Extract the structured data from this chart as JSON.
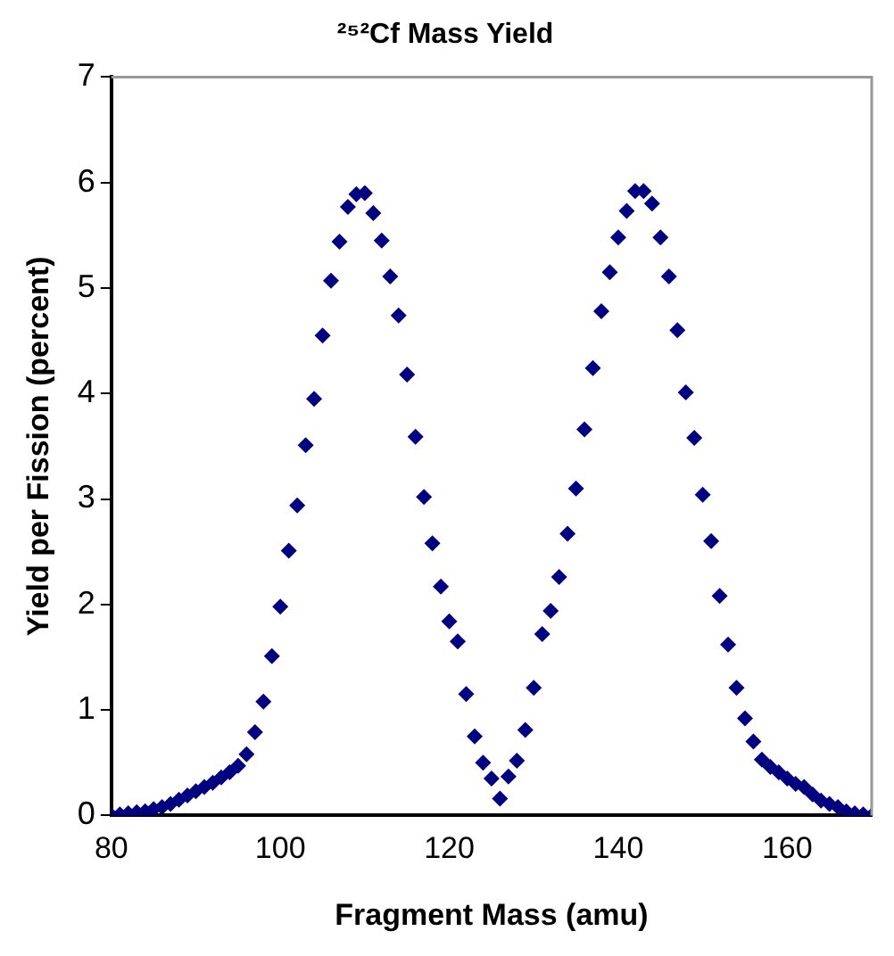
{
  "chart_data": {
    "type": "scatter",
    "title": "²⁵²Cf Mass Yield",
    "xlabel": "Fragment Mass (amu)",
    "ylabel": "Yield per Fission (percent)",
    "series": [
      {
        "color": "#000080",
        "x": [
          80,
          81,
          82,
          83,
          84,
          85,
          86,
          87,
          88,
          89,
          90,
          91,
          92,
          93,
          94,
          95,
          96,
          97,
          98,
          99,
          100,
          101,
          102,
          103,
          104,
          105,
          106,
          107,
          108,
          109,
          110,
          111,
          112,
          113,
          114,
          115,
          116,
          117,
          118,
          119,
          120,
          121,
          122,
          123,
          124,
          125,
          126,
          127,
          128,
          129,
          130,
          131,
          132,
          133,
          134,
          135,
          136,
          137,
          138,
          139,
          140,
          141,
          142,
          143,
          144,
          145,
          146,
          147,
          148,
          149,
          150,
          151,
          152,
          153,
          154,
          155,
          156,
          157,
          158,
          159,
          160,
          161,
          162,
          163,
          164,
          165,
          166,
          167,
          168,
          169,
          170
        ],
        "values": [
          0,
          0.01,
          0.02,
          0.03,
          0.04,
          0.06,
          0.08,
          0.11,
          0.15,
          0.19,
          0.23,
          0.27,
          0.31,
          0.36,
          0.41,
          0.47,
          0.58,
          0.79,
          1.08,
          1.51,
          1.98,
          2.51,
          2.94,
          3.51,
          3.95,
          4.55,
          5.07,
          5.44,
          5.77,
          5.89,
          5.9,
          5.71,
          5.45,
          5.11,
          4.74,
          4.18,
          3.59,
          3.02,
          2.58,
          2.17,
          1.84,
          1.65,
          1.15,
          0.75,
          0.5,
          0.35,
          0.16,
          0.37,
          0.52,
          0.81,
          1.21,
          1.72,
          1.94,
          2.26,
          2.67,
          3.1,
          3.66,
          4.24,
          4.78,
          5.15,
          5.48,
          5.73,
          5.92,
          5.92,
          5.8,
          5.48,
          5.11,
          4.6,
          4.01,
          3.58,
          3.04,
          2.6,
          2.08,
          1.62,
          1.21,
          0.92,
          0.7,
          0.53,
          0.46,
          0.41,
          0.35,
          0.3,
          0.27,
          0.2,
          0.14,
          0.11,
          0.08,
          0.04,
          0.02,
          0.01,
          0
        ]
      }
    ],
    "xlim": [
      80,
      170
    ],
    "xticks": [
      80,
      100,
      120,
      140,
      160
    ],
    "ylim": [
      0,
      7
    ],
    "yticks": [
      0,
      1,
      2,
      3,
      4,
      5,
      6,
      7
    ],
    "marker": "diamond",
    "grid": false,
    "legend": false
  }
}
